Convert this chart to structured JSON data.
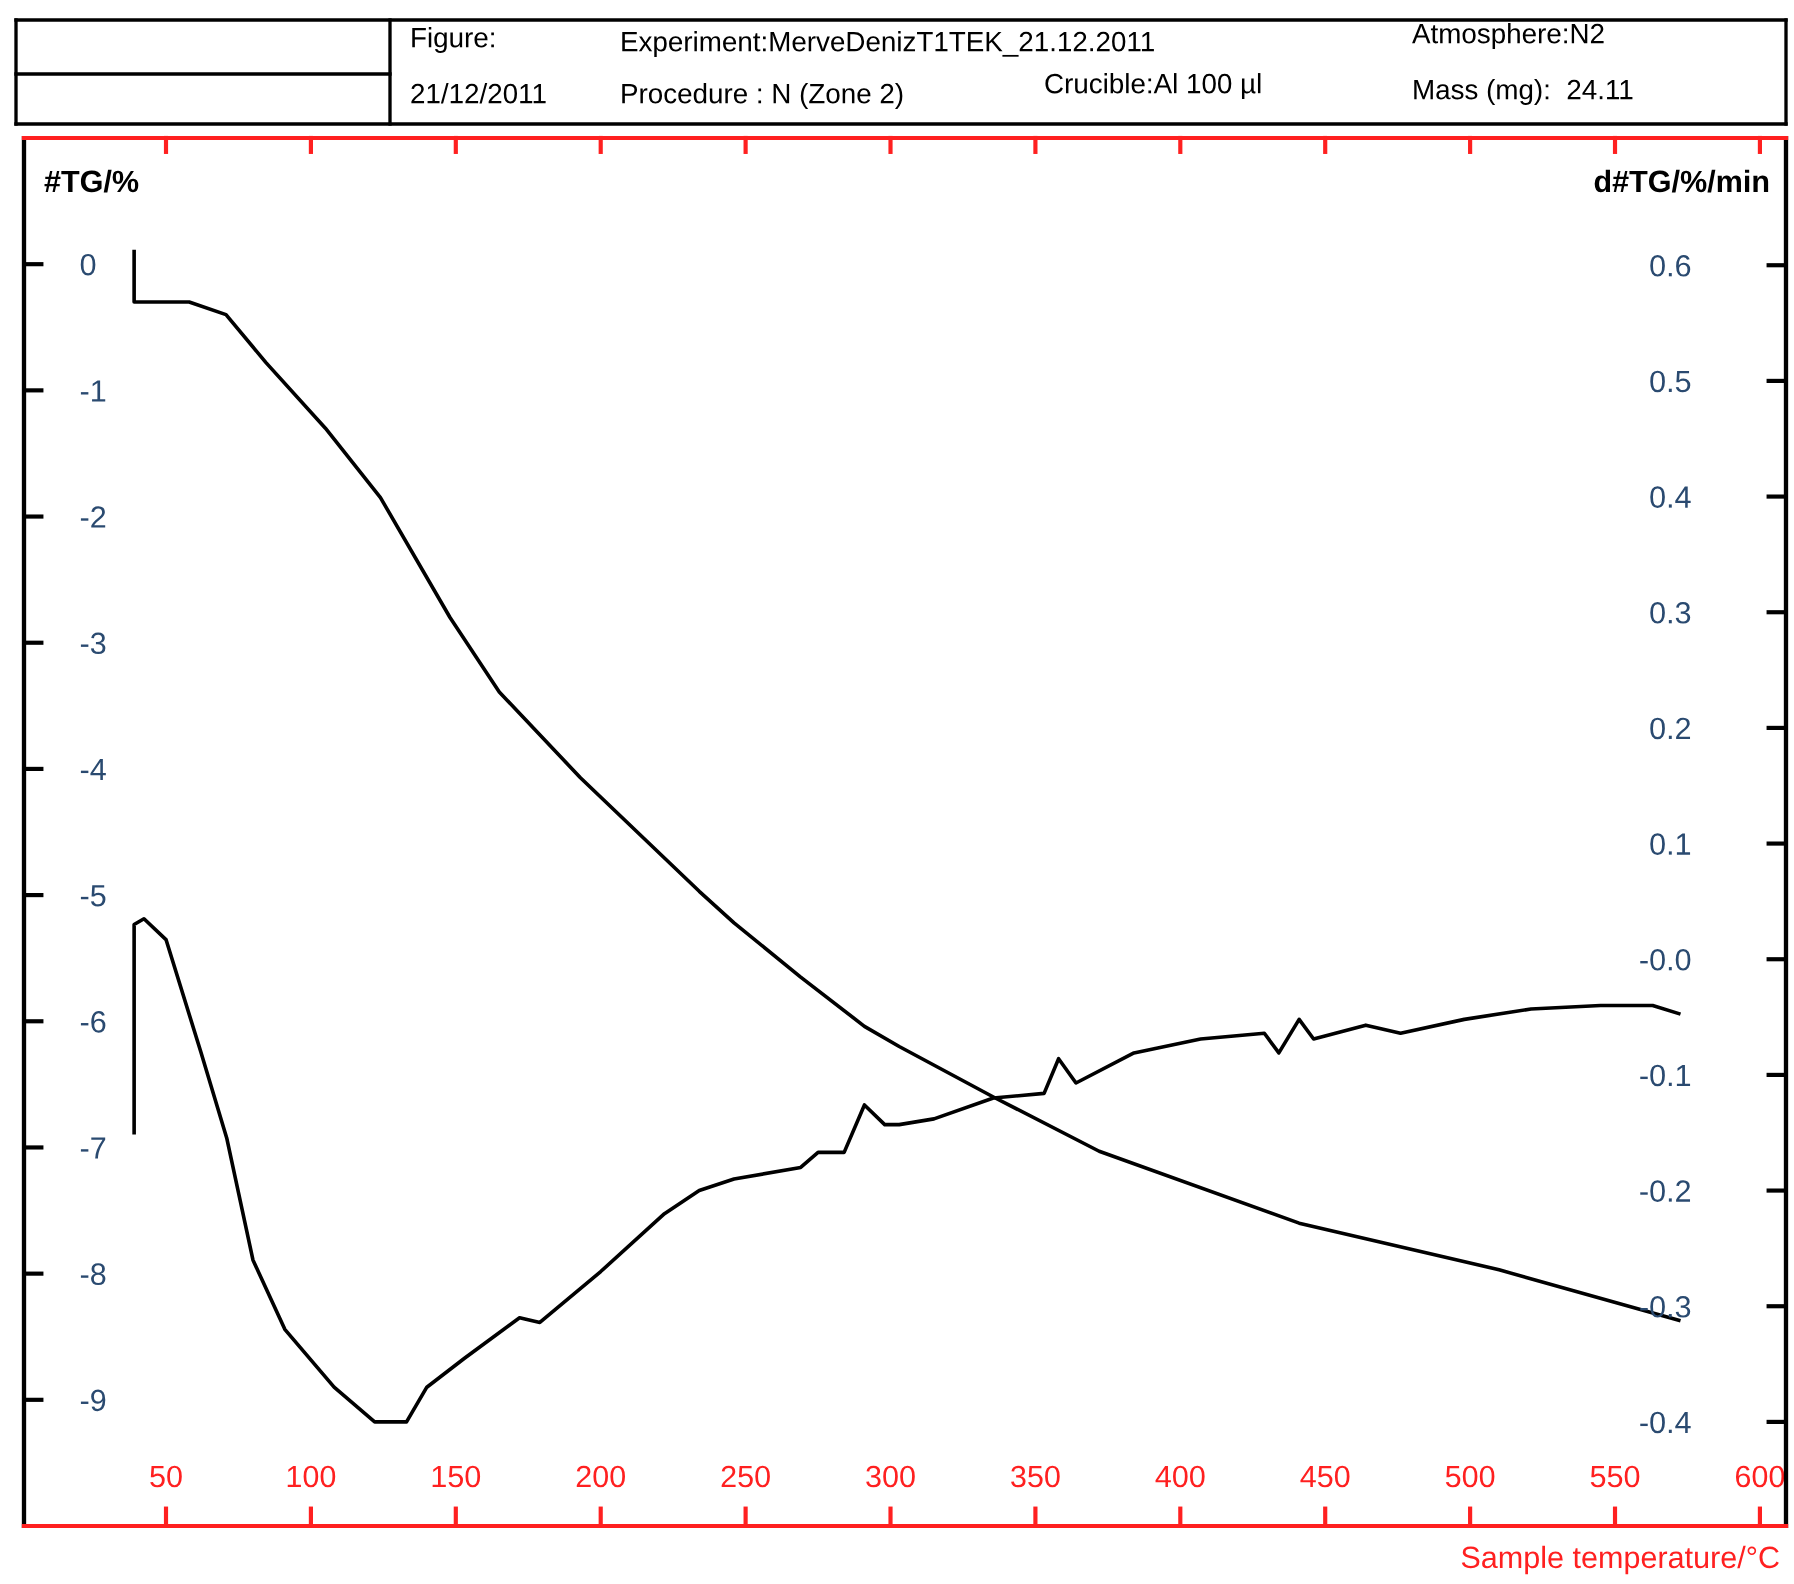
{
  "chart_data": {
    "type": "line",
    "xlabel": "Sample temperature/°C",
    "ylabel": "#TG/%",
    "y2label": "d#TG/%/min",
    "xlim": [
      1,
      609
    ],
    "xticks": [
      50,
      100,
      150,
      200,
      250,
      300,
      350,
      400,
      450,
      500,
      550,
      600
    ],
    "ylim": [
      -10,
      1
    ],
    "yticks": [
      -9,
      -8,
      -7,
      -6,
      -5,
      -4,
      -3,
      -2,
      -1,
      0
    ],
    "y2lim": [
      -0.49,
      0.71
    ],
    "y2ticks": [
      -0.4,
      -0.3,
      -0.2,
      -0.1,
      {
        "value": 0,
        "label": "-0.0"
      },
      0.1,
      0.2,
      0.3,
      0.4,
      0.5,
      0.6
    ],
    "marker": "none",
    "line_style": "solid",
    "annotations": [
      "Figure:",
      "21/12/2011",
      "Experiment:MerveDenizT1TEK_21.12.2011",
      "Procedure : N (Zone 2)",
      "Crucible:Al 100 µl",
      "Atmosphere:N2",
      "Mass (mg):  24.11"
    ],
    "series": [
      {
        "color": "#000000",
        "axis": "y",
        "x": [
          39,
          39,
          43,
          58,
          70.7,
          84.5,
          105,
          124,
          148,
          165,
          193,
          234,
          246,
          269,
          291,
          303,
          335.5,
          372,
          441,
          510,
          572
        ],
        "values": [
          0.1,
          -0.3,
          -0.3,
          -0.3,
          -0.4,
          -0.78,
          -1.3,
          -1.85,
          -2.8,
          -3.39,
          -4.07,
          -4.97,
          -5.22,
          -5.65,
          -6.04,
          -6.2,
          -6.6,
          -7.03,
          -7.6,
          -7.97,
          -8.37
        ]
      },
      {
        "color": "#000000",
        "axis": "y2",
        "x": [
          39,
          39,
          42.4,
          50,
          62,
          71,
          80,
          91,
          108,
          122,
          133,
          140,
          153,
          172,
          179,
          200,
          222,
          234,
          246,
          269,
          275,
          284,
          291,
          298,
          303,
          315,
          335.5,
          353,
          358,
          364,
          384,
          407,
          429,
          434,
          441,
          446,
          464,
          476,
          498,
          521,
          545,
          563,
          572
        ],
        "values": [
          -0.15,
          0.03,
          0.035,
          0.017,
          -0.08,
          -0.155,
          -0.26,
          -0.32,
          -0.37,
          -0.4,
          -0.4,
          -0.37,
          -0.345,
          -0.31,
          -0.314,
          -0.27,
          -0.22,
          -0.2,
          -0.19,
          -0.18,
          -0.167,
          -0.167,
          -0.126,
          -0.143,
          -0.143,
          -0.138,
          -0.12,
          -0.116,
          -0.086,
          -0.107,
          -0.081,
          -0.069,
          -0.064,
          -0.081,
          -0.052,
          -0.069,
          -0.057,
          -0.064,
          -0.052,
          -0.043,
          -0.04,
          -0.04,
          -0.047
        ]
      }
    ]
  }
}
